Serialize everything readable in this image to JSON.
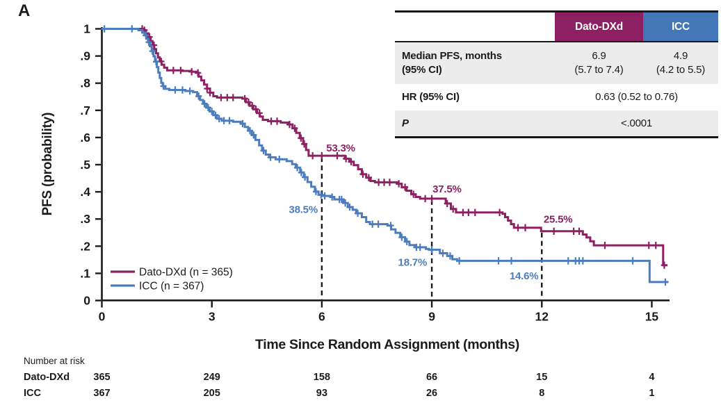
{
  "panel_label": "A",
  "colors": {
    "dato": "#8c2062",
    "icc": "#4b7dbe",
    "dato_header": "#8c2062",
    "icc_header": "#4377b7",
    "row_shade": "#ececec",
    "axis": "#1b1b1b"
  },
  "inset_table": {
    "header": {
      "empty": "",
      "dato": "Dato-DXd",
      "icc": "ICC"
    },
    "row_median": {
      "label1": "Median PFS, months",
      "label2": "(95% CI)",
      "dato1": "6.9",
      "dato2": "(5.7 to 7.4)",
      "icc1": "4.9",
      "icc2": "(4.2 to 5.5)"
    },
    "row_hr": {
      "label": "HR (95% CI)",
      "value": "0.63 (0.52 to 0.76)"
    },
    "row_p": {
      "label": "P",
      "value": "<.0001"
    }
  },
  "chart_data": {
    "type": "line",
    "subtype": "kaplan-meier-step",
    "title": "",
    "xlabel": "Time Since Random Assignment (months)",
    "ylabel": "PFS (probability)",
    "xlim": [
      0,
      15.5
    ],
    "ylim": [
      0,
      1
    ],
    "xticks": [
      0,
      3,
      6,
      9,
      12,
      15
    ],
    "yticks": [
      0,
      0.1,
      0.2,
      0.3,
      0.4,
      0.5,
      0.6,
      0.7,
      0.8,
      0.9,
      1
    ],
    "ytick_labels": [
      "0",
      ".1",
      ".2",
      ".3",
      ".4",
      ".5",
      ".6",
      ".7",
      ".8",
      ".9",
      "1"
    ],
    "grid": false,
    "legend_position": "lower-left",
    "dashed_lines": [
      {
        "month": 6,
        "top_prob": 0.533
      },
      {
        "month": 9,
        "top_prob": 0.375
      },
      {
        "month": 12,
        "top_prob": 0.255
      }
    ],
    "annotations": [
      {
        "text": "53.3%",
        "month": 6.12,
        "prob": 0.549,
        "series": "dato"
      },
      {
        "text": "38.5%",
        "month": 5.1,
        "prob": 0.322,
        "series": "icc"
      },
      {
        "text": "37.5%",
        "month": 9.02,
        "prob": 0.398,
        "series": "dato"
      },
      {
        "text": "18.7%",
        "month": 8.08,
        "prob": 0.128,
        "series": "icc"
      },
      {
        "text": "25.5%",
        "month": 12.05,
        "prob": 0.287,
        "series": "dato"
      },
      {
        "text": "14.6%",
        "month": 11.12,
        "prob": 0.078,
        "series": "icc"
      }
    ],
    "series": [
      {
        "key": "dato",
        "name": "Dato-DXd (n = 365)",
        "color": "#8c2062",
        "steps": [
          [
            0,
            1
          ],
          [
            1.12,
            0.995
          ],
          [
            1.2,
            0.983
          ],
          [
            1.27,
            0.97
          ],
          [
            1.33,
            0.955
          ],
          [
            1.38,
            0.94
          ],
          [
            1.43,
            0.925
          ],
          [
            1.48,
            0.91
          ],
          [
            1.53,
            0.895
          ],
          [
            1.58,
            0.88
          ],
          [
            1.63,
            0.868
          ],
          [
            1.7,
            0.857
          ],
          [
            1.78,
            0.847
          ],
          [
            2.2,
            0.845
          ],
          [
            2.45,
            0.842
          ],
          [
            2.57,
            0.838
          ],
          [
            2.64,
            0.824
          ],
          [
            2.71,
            0.81
          ],
          [
            2.79,
            0.795
          ],
          [
            2.87,
            0.78
          ],
          [
            2.95,
            0.765
          ],
          [
            3.04,
            0.752
          ],
          [
            3.14,
            0.747
          ],
          [
            3.83,
            0.743
          ],
          [
            3.93,
            0.73
          ],
          [
            4.03,
            0.717
          ],
          [
            4.13,
            0.704
          ],
          [
            4.23,
            0.69
          ],
          [
            4.31,
            0.677
          ],
          [
            4.39,
            0.665
          ],
          [
            4.53,
            0.66
          ],
          [
            4.88,
            0.655
          ],
          [
            5.08,
            0.648
          ],
          [
            5.2,
            0.634
          ],
          [
            5.3,
            0.617
          ],
          [
            5.4,
            0.598
          ],
          [
            5.49,
            0.576
          ],
          [
            5.57,
            0.554
          ],
          [
            5.64,
            0.533
          ],
          [
            6.55,
            0.533
          ],
          [
            6.63,
            0.522
          ],
          [
            6.75,
            0.511
          ],
          [
            6.87,
            0.498
          ],
          [
            6.99,
            0.483
          ],
          [
            7.09,
            0.465
          ],
          [
            7.21,
            0.452
          ],
          [
            7.33,
            0.44
          ],
          [
            7.45,
            0.435
          ],
          [
            8.06,
            0.43
          ],
          [
            8.18,
            0.417
          ],
          [
            8.31,
            0.404
          ],
          [
            8.44,
            0.391
          ],
          [
            8.56,
            0.381
          ],
          [
            8.68,
            0.375
          ],
          [
            9.2,
            0.375
          ],
          [
            9.38,
            0.357
          ],
          [
            9.52,
            0.337
          ],
          [
            9.66,
            0.324
          ],
          [
            10.93,
            0.319
          ],
          [
            11.0,
            0.307
          ],
          [
            11.08,
            0.294
          ],
          [
            11.16,
            0.281
          ],
          [
            11.24,
            0.268
          ],
          [
            11.98,
            0.255
          ],
          [
            13.12,
            0.243
          ],
          [
            13.22,
            0.232
          ],
          [
            13.32,
            0.218
          ],
          [
            13.42,
            0.203
          ],
          [
            15.28,
            0.203
          ],
          [
            15.31,
            0.13
          ],
          [
            15.43,
            0.13
          ]
        ],
        "censor_times": [
          1.1,
          1.16,
          1.3,
          1.42,
          1.62,
          1.95,
          2.15,
          2.45,
          2.62,
          2.87,
          2.95,
          3.25,
          3.42,
          3.58,
          3.9,
          4.0,
          4.1,
          4.2,
          4.3,
          4.62,
          4.78,
          5.12,
          5.26,
          5.43,
          5.52,
          5.75,
          6.0,
          6.42,
          6.66,
          6.8,
          7.12,
          7.28,
          7.55,
          7.7,
          7.85,
          8.1,
          8.27,
          8.5,
          8.82,
          9.0,
          9.42,
          9.58,
          9.85,
          10.0,
          10.18,
          10.85,
          11.35,
          11.55,
          12.33,
          12.87,
          13.02,
          13.72,
          14.92,
          15.11,
          15.34
        ]
      },
      {
        "key": "icc",
        "name": "ICC (n = 367)",
        "color": "#4b7dbe",
        "steps": [
          [
            0,
            1
          ],
          [
            1.0,
            0.995
          ],
          [
            1.1,
            0.986
          ],
          [
            1.16,
            0.976
          ],
          [
            1.21,
            0.964
          ],
          [
            1.26,
            0.951
          ],
          [
            1.31,
            0.936
          ],
          [
            1.36,
            0.918
          ],
          [
            1.41,
            0.899
          ],
          [
            1.45,
            0.879
          ],
          [
            1.5,
            0.859
          ],
          [
            1.54,
            0.839
          ],
          [
            1.58,
            0.819
          ],
          [
            1.62,
            0.801
          ],
          [
            1.66,
            0.789
          ],
          [
            1.73,
            0.779
          ],
          [
            1.84,
            0.775
          ],
          [
            2.28,
            0.771
          ],
          [
            2.49,
            0.767
          ],
          [
            2.6,
            0.752
          ],
          [
            2.68,
            0.738
          ],
          [
            2.76,
            0.724
          ],
          [
            2.85,
            0.71
          ],
          [
            2.94,
            0.696
          ],
          [
            3.04,
            0.682
          ],
          [
            3.14,
            0.669
          ],
          [
            3.27,
            0.662
          ],
          [
            3.58,
            0.658
          ],
          [
            3.79,
            0.651
          ],
          [
            3.9,
            0.639
          ],
          [
            3.99,
            0.625
          ],
          [
            4.09,
            0.609
          ],
          [
            4.19,
            0.591
          ],
          [
            4.29,
            0.571
          ],
          [
            4.37,
            0.552
          ],
          [
            4.47,
            0.537
          ],
          [
            4.57,
            0.527
          ],
          [
            4.74,
            0.52
          ],
          [
            5.04,
            0.513
          ],
          [
            5.19,
            0.502
          ],
          [
            5.29,
            0.489
          ],
          [
            5.41,
            0.471
          ],
          [
            5.51,
            0.454
          ],
          [
            5.61,
            0.436
          ],
          [
            5.71,
            0.419
          ],
          [
            5.81,
            0.401
          ],
          [
            5.91,
            0.389
          ],
          [
            6.01,
            0.385
          ],
          [
            6.24,
            0.381
          ],
          [
            6.34,
            0.372
          ],
          [
            6.59,
            0.359
          ],
          [
            6.71,
            0.344
          ],
          [
            6.84,
            0.334
          ],
          [
            6.94,
            0.321
          ],
          [
            7.09,
            0.307
          ],
          [
            7.21,
            0.289
          ],
          [
            7.31,
            0.281
          ],
          [
            7.79,
            0.276
          ],
          [
            7.89,
            0.262
          ],
          [
            8.01,
            0.249
          ],
          [
            8.14,
            0.233
          ],
          [
            8.27,
            0.217
          ],
          [
            8.39,
            0.204
          ],
          [
            8.54,
            0.196
          ],
          [
            8.84,
            0.19
          ],
          [
            8.92,
            0.187
          ],
          [
            9.22,
            0.174
          ],
          [
            9.42,
            0.164
          ],
          [
            9.56,
            0.152
          ],
          [
            9.69,
            0.146
          ],
          [
            14.91,
            0.146
          ],
          [
            14.94,
            0.068
          ],
          [
            15.45,
            0.068
          ]
        ],
        "censor_times": [
          0.07,
          0.82,
          1.2,
          1.28,
          1.38,
          1.48,
          1.68,
          2.0,
          2.2,
          2.4,
          2.64,
          2.8,
          2.9,
          3.0,
          3.1,
          3.2,
          3.33,
          3.48,
          3.84,
          4.04,
          4.14,
          4.41,
          4.6,
          4.84,
          5.33,
          5.44,
          5.54,
          5.84,
          5.98,
          6.08,
          6.28,
          6.48,
          6.54,
          6.64,
          6.76,
          6.98,
          7.38,
          7.54,
          7.88,
          8.18,
          8.32,
          8.58,
          8.68,
          9.0,
          9.3,
          9.5,
          9.75,
          10.82,
          11.17,
          12.72,
          12.92,
          13.02,
          13.12,
          14.48,
          15.37
        ]
      }
    ]
  },
  "risk_table": {
    "title": "Number at risk",
    "timepoints": [
      0,
      3,
      6,
      9,
      12,
      15
    ],
    "rows": [
      {
        "label": "Dato-DXd",
        "values": [
          "365",
          "249",
          "158",
          "66",
          "15",
          "4"
        ]
      },
      {
        "label": "ICC",
        "values": [
          "367",
          "205",
          "93",
          "26",
          "8",
          "1"
        ]
      }
    ]
  }
}
